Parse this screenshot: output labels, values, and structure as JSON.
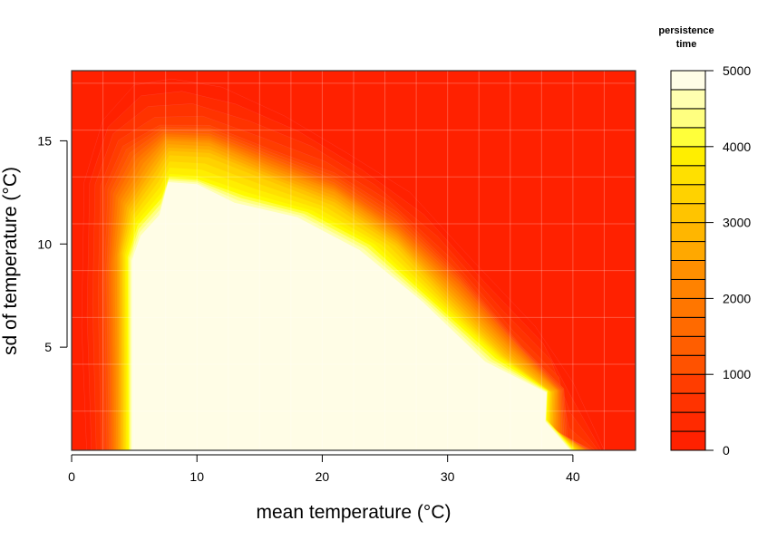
{
  "chart_data": {
    "type": "heatmap",
    "subtype": "filled-contour",
    "xlabel": "mean temperature (°C)",
    "ylabel": "sd of temperature (°C)",
    "xlim": [
      0,
      45
    ],
    "ylim": [
      0,
      18.4
    ],
    "x_ticks": [
      0,
      10,
      20,
      30,
      40
    ],
    "y_ticks": [
      5,
      10,
      15
    ],
    "grid": true,
    "legend": {
      "title_line1": "persistence",
      "title_line2": "time",
      "position": "right",
      "min": 0,
      "max": 5000,
      "step": 250,
      "ticks": [
        0,
        1000,
        2000,
        3000,
        4000,
        5000
      ]
    },
    "colors": [
      "#ff2100",
      "#ff2a00",
      "#ff3300",
      "#ff3d00",
      "#ff4800",
      "#ff5200",
      "#ff5e00",
      "#ff6a00",
      "#ff7600",
      "#ff8200",
      "#ff8f00",
      "#ff9b00",
      "#ffa800",
      "#ffb600",
      "#ffc400",
      "#ffd200",
      "#ffe000",
      "#ffee00",
      "#fffa00",
      "#ffff3a",
      "#ffff80",
      "#ffffb0",
      "#fffde6"
    ],
    "contours": [
      {
        "level": 250,
        "points": [
          [
            1.2,
            0
          ],
          [
            0.8,
            6
          ],
          [
            1.0,
            13
          ],
          [
            2.5,
            16
          ],
          [
            5,
            17.7
          ],
          [
            8,
            18
          ],
          [
            12,
            17.6
          ],
          [
            17,
            16.2
          ],
          [
            22,
            14.4
          ],
          [
            27,
            12.5
          ],
          [
            32,
            9.2
          ],
          [
            37,
            6
          ],
          [
            40,
            3.3
          ],
          [
            42.5,
            0
          ]
        ]
      },
      {
        "level": 1000,
        "points": [
          [
            2.6,
            0
          ],
          [
            2.4,
            8
          ],
          [
            2.6,
            12.8
          ],
          [
            4,
            14.8
          ],
          [
            7,
            15.8
          ],
          [
            11,
            15.8
          ],
          [
            16,
            14.6
          ],
          [
            21,
            13.5
          ],
          [
            26,
            11.6
          ],
          [
            31,
            8.6
          ],
          [
            36,
            5.0
          ],
          [
            39.3,
            3
          ],
          [
            39.6,
            0.6
          ],
          [
            41.6,
            0
          ]
        ]
      },
      {
        "level": 2000,
        "points": [
          [
            3.2,
            0
          ],
          [
            3.0,
            9
          ],
          [
            3.4,
            12.4
          ],
          [
            5,
            14.2
          ],
          [
            7.4,
            15.4
          ],
          [
            11,
            15.3
          ],
          [
            16,
            14.1
          ],
          [
            21,
            12.9
          ],
          [
            26,
            10.9
          ],
          [
            31,
            8.1
          ],
          [
            35.5,
            5.1
          ],
          [
            39,
            2.9
          ],
          [
            39.1,
            0.8
          ],
          [
            41.2,
            0
          ]
        ]
      },
      {
        "level": 3000,
        "points": [
          [
            3.7,
            0
          ],
          [
            3.6,
            9.4
          ],
          [
            4.1,
            12
          ],
          [
            6,
            13.8
          ],
          [
            7.6,
            15
          ],
          [
            11,
            14.9
          ],
          [
            16,
            13.6
          ],
          [
            21,
            12.5
          ],
          [
            26,
            10.4
          ],
          [
            30.5,
            7.7
          ],
          [
            35,
            4.9
          ],
          [
            38.7,
            2.9
          ],
          [
            38.6,
            1.0
          ],
          [
            40.9,
            0
          ]
        ]
      },
      {
        "level": 4000,
        "points": [
          [
            4.1,
            0
          ],
          [
            4.0,
            9.6
          ],
          [
            4.7,
            11.6
          ],
          [
            6.8,
            13.4
          ],
          [
            7.8,
            14.4
          ],
          [
            11,
            14.3
          ],
          [
            16,
            13.1
          ],
          [
            21,
            11.9
          ],
          [
            26,
            9.9
          ],
          [
            30,
            7.3
          ],
          [
            34.5,
            4.6
          ],
          [
            38.3,
            2.8
          ],
          [
            38.2,
            1.2
          ],
          [
            40.4,
            0
          ]
        ]
      },
      {
        "level": 4750,
        "points": [
          [
            4.5,
            0
          ],
          [
            4.4,
            9.4
          ],
          [
            5.2,
            11
          ],
          [
            7.2,
            12.4
          ],
          [
            7.8,
            13.3
          ],
          [
            10,
            13.2
          ],
          [
            14,
            12.4
          ],
          [
            19,
            11.6
          ],
          [
            24,
            10.0
          ],
          [
            29,
            7.2
          ],
          [
            34,
            4.5
          ],
          [
            38,
            2.9
          ],
          [
            37.9,
            1.5
          ],
          [
            40.1,
            0
          ]
        ]
      },
      {
        "level": 5000,
        "points": [
          [
            4.8,
            0
          ],
          [
            4.8,
            9.2
          ],
          [
            5.5,
            10.4
          ],
          [
            7.0,
            11.4
          ],
          [
            7.7,
            13.0
          ],
          [
            10,
            12.9
          ],
          [
            13,
            12.0
          ],
          [
            18,
            11.3
          ],
          [
            23,
            9.7
          ],
          [
            28,
            7.2
          ],
          [
            33,
            4.3
          ],
          [
            37.9,
            2.8
          ],
          [
            37.8,
            1.4
          ],
          [
            39.8,
            0
          ]
        ]
      }
    ]
  }
}
